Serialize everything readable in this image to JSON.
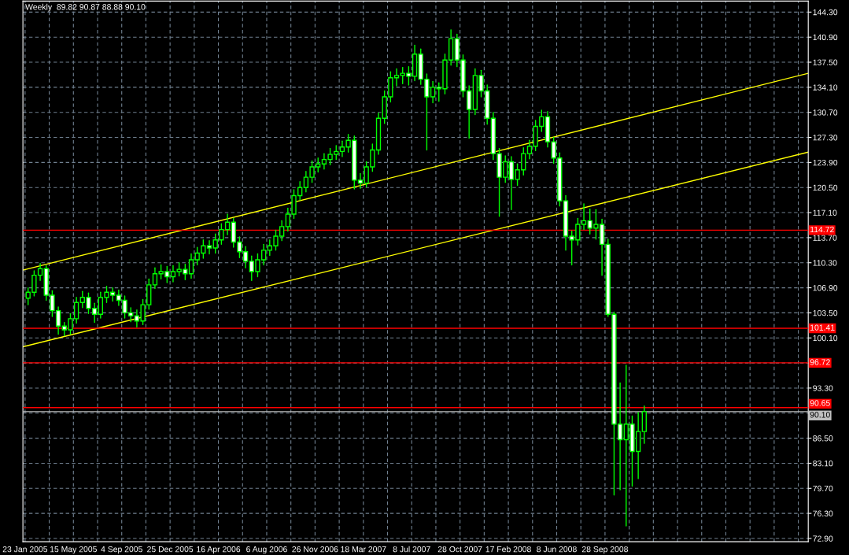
{
  "chart_data": {
    "type": "candlestick",
    "title": "Weekly  89.82 90.87 88.88 90.10",
    "color": "#00ff00",
    "x": [
      "2005-01-30",
      "2005-02-13",
      "2005-02-27",
      "2005-03-13",
      "2005-03-27",
      "2005-04-10",
      "2005-04-24",
      "2005-05-08",
      "2005-05-22",
      "2005-06-05",
      "2005-06-19",
      "2005-07-03",
      "2005-07-17",
      "2005-07-31",
      "2005-08-14",
      "2005-08-28",
      "2005-09-11",
      "2005-09-25",
      "2005-10-09",
      "2005-10-23",
      "2005-11-06",
      "2005-11-20",
      "2005-12-04",
      "2005-12-18",
      "2006-01-01",
      "2006-01-15",
      "2006-01-29",
      "2006-02-12",
      "2006-02-26",
      "2006-03-12",
      "2006-03-26",
      "2006-04-09",
      "2006-04-23",
      "2006-05-07",
      "2006-05-21",
      "2006-06-04",
      "2006-06-18",
      "2006-07-02",
      "2006-07-16",
      "2006-07-30",
      "2006-08-13",
      "2006-08-27",
      "2006-09-10",
      "2006-09-24",
      "2006-10-08",
      "2006-10-22",
      "2006-11-05",
      "2006-11-19",
      "2006-12-03",
      "2006-12-17",
      "2006-12-31",
      "2007-01-14",
      "2007-01-28",
      "2007-02-11",
      "2007-02-25",
      "2007-03-11",
      "2007-03-25",
      "2007-04-08",
      "2007-04-22",
      "2007-05-06",
      "2007-05-20",
      "2007-06-03",
      "2007-06-17",
      "2007-07-01",
      "2007-07-15",
      "2007-07-29",
      "2007-08-12",
      "2007-08-26",
      "2007-09-09",
      "2007-09-23",
      "2007-10-07",
      "2007-10-21",
      "2007-11-04",
      "2007-11-18",
      "2007-12-02",
      "2007-12-16",
      "2007-12-30",
      "2008-01-13",
      "2008-01-27",
      "2008-02-10",
      "2008-02-24",
      "2008-03-09",
      "2008-03-23",
      "2008-04-06",
      "2008-04-20",
      "2008-05-04",
      "2008-05-18",
      "2008-06-01",
      "2008-06-15",
      "2008-06-29",
      "2008-07-13",
      "2008-07-27",
      "2008-08-10",
      "2008-08-24",
      "2008-09-07",
      "2008-09-21",
      "2008-10-05",
      "2008-10-19",
      "2008-11-02",
      "2008-11-16",
      "2008-11-30",
      "2008-12-14",
      "2008-12-28"
    ],
    "ohlc": [
      [
        105.5,
        106.9,
        104.6,
        106.3
      ],
      [
        106.3,
        109.2,
        105.8,
        108.6
      ],
      [
        108.6,
        110.2,
        107.9,
        109.5
      ],
      [
        109.5,
        109.9,
        105.2,
        105.9
      ],
      [
        105.9,
        106.5,
        103.0,
        103.8
      ],
      [
        103.8,
        104.3,
        100.6,
        101.7
      ],
      [
        101.7,
        102.2,
        100.4,
        101.2
      ],
      [
        101.2,
        103.4,
        100.6,
        102.7
      ],
      [
        102.7,
        105.6,
        102.1,
        104.9
      ],
      [
        104.9,
        106.4,
        104.2,
        105.6
      ],
      [
        105.6,
        106.2,
        103.4,
        104.1
      ],
      [
        104.1,
        104.8,
        102.2,
        103.3
      ],
      [
        103.3,
        106.3,
        102.8,
        105.6
      ],
      [
        105.6,
        107.1,
        104.9,
        106.3
      ],
      [
        106.3,
        106.9,
        105.1,
        105.9
      ],
      [
        105.9,
        106.6,
        104.5,
        105.2
      ],
      [
        105.2,
        105.8,
        102.8,
        103.5
      ],
      [
        103.5,
        104.2,
        102.3,
        103.1
      ],
      [
        103.1,
        103.9,
        101.6,
        102.4
      ],
      [
        102.4,
        105.3,
        101.9,
        104.6
      ],
      [
        104.6,
        108.1,
        104.0,
        107.3
      ],
      [
        107.3,
        109.6,
        106.8,
        108.8
      ],
      [
        108.8,
        110.0,
        108.1,
        109.1
      ],
      [
        109.1,
        109.8,
        107.6,
        108.4
      ],
      [
        108.4,
        109.9,
        107.7,
        109.1
      ],
      [
        109.1,
        110.3,
        108.5,
        109.4
      ],
      [
        109.4,
        110.1,
        108.0,
        108.8
      ],
      [
        108.8,
        111.5,
        108.2,
        110.7
      ],
      [
        110.7,
        112.4,
        110.0,
        111.6
      ],
      [
        111.6,
        113.4,
        110.9,
        112.6
      ],
      [
        112.6,
        113.3,
        111.5,
        112.3
      ],
      [
        112.3,
        114.2,
        111.6,
        113.4
      ],
      [
        113.4,
        115.6,
        112.8,
        114.8
      ],
      [
        114.8,
        116.9,
        114.1,
        115.8
      ],
      [
        115.8,
        116.3,
        112.4,
        113.1
      ],
      [
        113.1,
        113.8,
        111.0,
        111.8
      ],
      [
        111.8,
        112.5,
        109.6,
        110.5
      ],
      [
        110.5,
        111.2,
        107.9,
        109.1
      ],
      [
        109.1,
        111.5,
        108.4,
        110.7
      ],
      [
        110.7,
        112.8,
        110.0,
        112.0
      ],
      [
        112.0,
        113.4,
        111.3,
        112.6
      ],
      [
        112.6,
        114.7,
        112.0,
        113.9
      ],
      [
        113.9,
        116.0,
        113.3,
        115.2
      ],
      [
        115.2,
        117.7,
        114.6,
        116.9
      ],
      [
        116.9,
        120.2,
        116.3,
        119.4
      ],
      [
        119.4,
        121.3,
        118.8,
        120.5
      ],
      [
        120.5,
        122.7,
        119.9,
        121.9
      ],
      [
        121.9,
        124.1,
        121.2,
        123.3
      ],
      [
        123.3,
        124.5,
        122.6,
        123.7
      ],
      [
        123.7,
        125.1,
        123.0,
        124.3
      ],
      [
        124.3,
        125.8,
        123.6,
        125.0
      ],
      [
        125.0,
        126.2,
        124.3,
        125.4
      ],
      [
        125.4,
        126.8,
        124.7,
        126.0
      ],
      [
        126.0,
        127.7,
        125.3,
        126.9
      ],
      [
        126.9,
        127.5,
        120.3,
        121.5
      ],
      [
        121.5,
        122.4,
        120.4,
        121.1
      ],
      [
        121.1,
        124.0,
        120.6,
        123.3
      ],
      [
        123.3,
        126.4,
        122.7,
        125.6
      ],
      [
        125.6,
        130.6,
        125.0,
        129.9
      ],
      [
        129.9,
        133.6,
        129.2,
        132.8
      ],
      [
        132.8,
        136.2,
        132.1,
        135.4
      ],
      [
        135.4,
        136.6,
        134.3,
        135.7
      ],
      [
        135.7,
        136.8,
        134.6,
        136.0
      ],
      [
        136.0,
        136.9,
        134.4,
        135.6
      ],
      [
        135.6,
        139.8,
        135.0,
        138.6
      ],
      [
        138.6,
        139.3,
        134.5,
        135.2
      ],
      [
        135.2,
        135.9,
        125.6,
        132.8
      ],
      [
        132.8,
        134.9,
        132.0,
        134.1
      ],
      [
        134.1,
        134.7,
        132.2,
        133.9
      ],
      [
        133.9,
        138.6,
        133.2,
        137.8
      ],
      [
        137.8,
        141.9,
        137.1,
        140.7
      ],
      [
        140.7,
        141.3,
        136.9,
        137.8
      ],
      [
        137.8,
        138.5,
        132.8,
        133.6
      ],
      [
        133.6,
        134.3,
        127.2,
        131.1
      ],
      [
        131.1,
        136.6,
        130.4,
        135.7
      ],
      [
        135.7,
        136.4,
        132.8,
        133.6
      ],
      [
        133.6,
        134.4,
        129.1,
        129.9
      ],
      [
        129.9,
        130.7,
        124.3,
        125.1
      ],
      [
        125.1,
        125.8,
        116.6,
        121.9
      ],
      [
        121.9,
        124.8,
        121.2,
        124.0
      ],
      [
        124.0,
        124.7,
        117.5,
        121.6
      ],
      [
        121.6,
        123.7,
        120.8,
        122.9
      ],
      [
        122.9,
        125.9,
        122.2,
        125.1
      ],
      [
        125.1,
        126.9,
        124.4,
        126.1
      ],
      [
        126.1,
        129.6,
        125.5,
        128.8
      ],
      [
        128.8,
        131.0,
        128.1,
        130.1
      ],
      [
        130.1,
        130.8,
        126.0,
        126.7
      ],
      [
        126.7,
        127.3,
        123.8,
        124.5
      ],
      [
        124.5,
        125.2,
        118.0,
        118.7
      ],
      [
        118.7,
        119.4,
        112.0,
        113.9
      ],
      [
        113.9,
        114.6,
        110.0,
        113.4
      ],
      [
        113.4,
        116.3,
        112.7,
        115.5
      ],
      [
        115.5,
        118.3,
        114.8,
        116.0
      ],
      [
        116.0,
        117.6,
        114.2,
        115.0
      ],
      [
        115.0,
        117.5,
        113.5,
        115.5
      ],
      [
        115.5,
        116.2,
        108.6,
        112.8
      ],
      [
        112.8,
        113.5,
        103.0,
        103.3
      ],
      [
        103.3,
        103.6,
        78.8,
        88.4
      ],
      [
        88.4,
        94.0,
        79.5,
        86.3
      ],
      [
        86.3,
        96.4,
        74.6,
        88.4
      ],
      [
        88.4,
        89.5,
        80.0,
        84.7
      ],
      [
        84.7,
        90.0,
        81.0,
        87.4
      ],
      [
        87.4,
        90.87,
        85.8,
        90.1
      ]
    ],
    "series": [
      {
        "type": "line",
        "color": "#ffff00",
        "x": [
          "2005-01-18",
          "2010-01-12"
        ],
        "values": [
          109.3,
          136.0
        ]
      },
      {
        "type": "line",
        "color": "#ffff00",
        "x": [
          "2005-01-18",
          "2010-01-12"
        ],
        "values": [
          98.9,
          125.3
        ]
      }
    ],
    "ref_lines": [
      {
        "axis": "y",
        "value": 114.72,
        "label": "114.72",
        "color": "#ff0000"
      },
      {
        "axis": "y",
        "value": 101.41,
        "label": "101.41",
        "color": "#ff0000"
      },
      {
        "axis": "y",
        "value": 96.72,
        "label": "96.72",
        "color": "#ff0000"
      },
      {
        "axis": "y",
        "value": 90.65,
        "label": "90.65",
        "color": "#ff0000"
      },
      {
        "axis": "y",
        "value": 90.1,
        "label": "90.10",
        "color": "#c0c0c0"
      }
    ],
    "xlim": [
      "2005-01-18",
      "2010-01-12"
    ],
    "ylim": [
      72.46,
      145.79
    ],
    "xticks": [
      {
        "value": "2005-01-23",
        "label": "23 Jan 2005"
      },
      {
        "value": "2005-03-20",
        "label": null
      },
      {
        "value": "2005-05-15",
        "label": "15 May 2005"
      },
      {
        "value": "2005-07-10",
        "label": null
      },
      {
        "value": "2005-09-04",
        "label": "4 Sep 2005"
      },
      {
        "value": "2005-10-30",
        "label": null
      },
      {
        "value": "2005-12-25",
        "label": "25 Dec 2005"
      },
      {
        "value": "2006-02-19",
        "label": null
      },
      {
        "value": "2006-04-16",
        "label": "16 Apr 2006"
      },
      {
        "value": "2006-06-11",
        "label": null
      },
      {
        "value": "2006-08-06",
        "label": "6 Aug 2006"
      },
      {
        "value": "2006-10-01",
        "label": null
      },
      {
        "value": "2006-11-26",
        "label": "26 Nov 2006"
      },
      {
        "value": "2007-01-21",
        "label": null
      },
      {
        "value": "2007-03-18",
        "label": "18 Mar 2007"
      },
      {
        "value": "2007-05-13",
        "label": null
      },
      {
        "value": "2007-07-08",
        "label": "8 Jul 2007"
      },
      {
        "value": "2007-09-02",
        "label": null
      },
      {
        "value": "2007-10-28",
        "label": "28 Oct 2007"
      },
      {
        "value": "2007-12-23",
        "label": null
      },
      {
        "value": "2008-02-17",
        "label": "17 Feb 2008"
      },
      {
        "value": "2008-04-13",
        "label": null
      },
      {
        "value": "2008-06-08",
        "label": "8 Jun 2008"
      },
      {
        "value": "2008-08-03",
        "label": null
      },
      {
        "value": "2008-09-28",
        "label": "28 Sep 2008"
      },
      {
        "value": "2008-11-23",
        "label": null
      },
      {
        "value": "2009-01-18",
        "label": null
      },
      {
        "value": "2009-03-15",
        "label": null
      },
      {
        "value": "2009-05-10",
        "label": null
      },
      {
        "value": "2009-07-05",
        "label": null
      },
      {
        "value": "2009-08-30",
        "label": null
      },
      {
        "value": "2009-10-25",
        "label": null
      },
      {
        "value": "2009-12-20",
        "label": null
      }
    ],
    "yticks": [
      {
        "value": 72.9,
        "label": "72.90"
      },
      {
        "value": 76.3,
        "label": "76.30"
      },
      {
        "value": 79.7,
        "label": "79.70"
      },
      {
        "value": 83.1,
        "label": "83.10"
      },
      {
        "value": 86.5,
        "label": "86.50"
      },
      {
        "value": 89.9,
        "label": null
      },
      {
        "value": 93.3,
        "label": "93.30"
      },
      {
        "value": 96.7,
        "label": null
      },
      {
        "value": 100.1,
        "label": "100.10"
      },
      {
        "value": 103.5,
        "label": "103.50"
      },
      {
        "value": 106.9,
        "label": "106.90"
      },
      {
        "value": 110.3,
        "label": "110.30"
      },
      {
        "value": 113.7,
        "label": "113.70"
      },
      {
        "value": 117.1,
        "label": "117.10"
      },
      {
        "value": 120.5,
        "label": "120.50"
      },
      {
        "value": 123.9,
        "label": "123.90"
      },
      {
        "value": 127.3,
        "label": "127.30"
      },
      {
        "value": 130.7,
        "label": "130.70"
      },
      {
        "value": 134.1,
        "label": "134.10"
      },
      {
        "value": 137.5,
        "label": "137.50"
      },
      {
        "value": 140.9,
        "label": "140.90"
      },
      {
        "value": 144.3,
        "label": "144.30"
      }
    ],
    "grid": true
  }
}
